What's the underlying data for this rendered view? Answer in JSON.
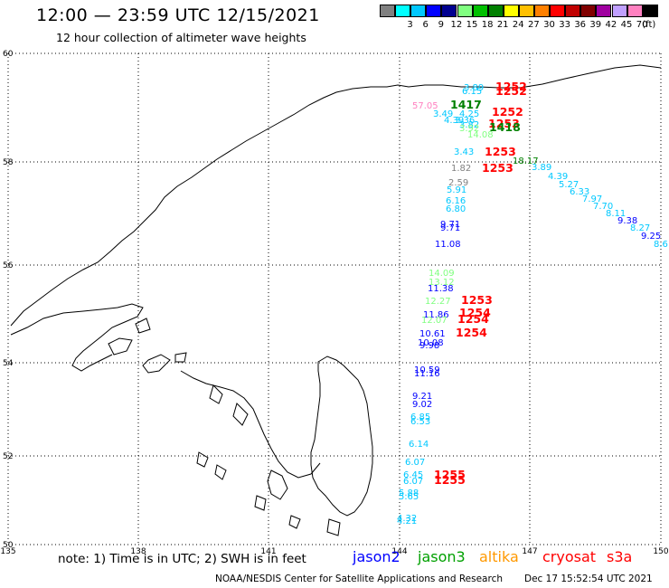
{
  "header": {
    "title": "12:00 — 23:59 UTC 12/15/2021",
    "subtitle": "12 hour collection of altimeter wave heights"
  },
  "legend": {
    "unit": "(ft)",
    "bins": [
      {
        "color": "#808080",
        "label": ""
      },
      {
        "color": "#00ffff",
        "label": "3"
      },
      {
        "color": "#00c8ff",
        "label": "6"
      },
      {
        "color": "#0000ff",
        "label": "9"
      },
      {
        "color": "#000090",
        "label": "12"
      },
      {
        "color": "#80ff80",
        "label": "15"
      },
      {
        "color": "#00c000",
        "label": "18"
      },
      {
        "color": "#008000",
        "label": "21"
      },
      {
        "color": "#ffff00",
        "label": "24"
      },
      {
        "color": "#ffc000",
        "label": "27"
      },
      {
        "color": "#ff8000",
        "label": "30"
      },
      {
        "color": "#ff0000",
        "label": "33"
      },
      {
        "color": "#c00000",
        "label": "36"
      },
      {
        "color": "#800000",
        "label": "39"
      },
      {
        "color": "#a000a0",
        "label": "42"
      },
      {
        "color": "#c0a0ff",
        "label": "45"
      },
      {
        "color": "#ff80c0",
        "label": "70"
      },
      {
        "color": "#000000",
        "label": ""
      }
    ]
  },
  "axes": {
    "lat_labels": [
      "60",
      "58",
      "56",
      "54",
      "52",
      "50"
    ],
    "lon_labels": [
      "135",
      "138",
      "141",
      "144",
      "147",
      "150"
    ]
  },
  "observations": [
    {
      "text": "3.89",
      "color": "#00c8ff"
    },
    {
      "text": "6.15",
      "color": "#00c8ff"
    },
    {
      "text": "1252",
      "color": "#ff0000"
    },
    {
      "text": "1252",
      "color": "#ff0000"
    },
    {
      "text": "57.05",
      "color": "#ff80c0"
    },
    {
      "text": "1417",
      "color": "#008000"
    },
    {
      "text": "3.49",
      "color": "#00c8ff"
    },
    {
      "text": "4.25",
      "color": "#00c8ff"
    },
    {
      "text": "4.39",
      "color": "#00c8ff"
    },
    {
      "text": "3.36",
      "color": "#00c8ff"
    },
    {
      "text": "1252",
      "color": "#ff0000"
    },
    {
      "text": "3.82",
      "color": "#00c8ff"
    },
    {
      "text": "3.92",
      "color": "#80ff80"
    },
    {
      "text": "1253",
      "color": "#ff0000"
    },
    {
      "text": "1418",
      "color": "#008000"
    },
    {
      "text": "14.08",
      "color": "#80ff80"
    },
    {
      "text": "3.43",
      "color": "#00c8ff"
    },
    {
      "text": "1253",
      "color": "#ff0000"
    },
    {
      "text": "18.17",
      "color": "#008000"
    },
    {
      "text": "1.82",
      "color": "#808080"
    },
    {
      "text": "1253",
      "color": "#ff0000"
    },
    {
      "text": "3.89",
      "color": "#00c8ff"
    },
    {
      "text": "4.39",
      "color": "#00c8ff"
    },
    {
      "text": "5.27",
      "color": "#00c8ff"
    },
    {
      "text": "6.33",
      "color": "#00c8ff"
    },
    {
      "text": "7.97",
      "color": "#00c8ff"
    },
    {
      "text": "7.70",
      "color": "#00c8ff"
    },
    {
      "text": "8.11",
      "color": "#00c8ff"
    },
    {
      "text": "9.38",
      "color": "#0000ff"
    },
    {
      "text": "8.27",
      "color": "#00c8ff"
    },
    {
      "text": "9.25",
      "color": "#0000ff"
    },
    {
      "text": "8.6",
      "color": "#00c8ff"
    },
    {
      "text": "2.59",
      "color": "#808080"
    },
    {
      "text": "5.91",
      "color": "#00c8ff"
    },
    {
      "text": "6.16",
      "color": "#00c8ff"
    },
    {
      "text": "6.80",
      "color": "#00c8ff"
    },
    {
      "text": "9.71",
      "color": "#0000ff"
    },
    {
      "text": "9.71",
      "color": "#0000ff"
    },
    {
      "text": "11.08",
      "color": "#0000ff"
    },
    {
      "text": "14.09",
      "color": "#80ff80"
    },
    {
      "text": "13.12",
      "color": "#80ff80"
    },
    {
      "text": "11.38",
      "color": "#0000ff"
    },
    {
      "text": "12.27",
      "color": "#80ff80"
    },
    {
      "text": "1253",
      "color": "#ff0000"
    },
    {
      "text": "11.86",
      "color": "#0000ff"
    },
    {
      "text": "1254",
      "color": "#ff0000"
    },
    {
      "text": "12.07",
      "color": "#80ff80"
    },
    {
      "text": "1254",
      "color": "#ff0000"
    },
    {
      "text": "10.61",
      "color": "#0000ff"
    },
    {
      "text": "1254",
      "color": "#ff0000"
    },
    {
      "text": "10.08",
      "color": "#0000ff"
    },
    {
      "text": "9.98",
      "color": "#0000ff"
    },
    {
      "text": "10.59",
      "color": "#0000ff"
    },
    {
      "text": "11.16",
      "color": "#0000ff"
    },
    {
      "text": "9.21",
      "color": "#0000ff"
    },
    {
      "text": "9.02",
      "color": "#0000ff"
    },
    {
      "text": "6.85",
      "color": "#00c8ff"
    },
    {
      "text": "6.53",
      "color": "#00c8ff"
    },
    {
      "text": "6.14",
      "color": "#00c8ff"
    },
    {
      "text": "6.07",
      "color": "#00c8ff"
    },
    {
      "text": "6.45",
      "color": "#00c8ff"
    },
    {
      "text": "6.07",
      "color": "#00c8ff"
    },
    {
      "text": "1255",
      "color": "#ff0000"
    },
    {
      "text": "1255",
      "color": "#ff0000"
    },
    {
      "text": "5.88",
      "color": "#00c8ff"
    },
    {
      "text": "5.65",
      "color": "#00c8ff"
    },
    {
      "text": "4.32",
      "color": "#00c8ff"
    },
    {
      "text": "4.21",
      "color": "#00c8ff"
    }
  ],
  "footer": {
    "note": "note:  1) Time is in UTC;  2) SWH is in feet",
    "satellites": [
      {
        "name": "jason2",
        "color": "#0000ff"
      },
      {
        "name": "jason3",
        "color": "#00a000"
      },
      {
        "name": "altika",
        "color": "#ff9900"
      },
      {
        "name": "cryosat",
        "color": "#ff0000"
      },
      {
        "name": "s3a",
        "color": "#ff0000"
      }
    ],
    "credit": "NOAA/NESDIS Center for Satellite Applications and Research",
    "timestamp": "Dec 17 15:52:54 UTC 2021"
  }
}
